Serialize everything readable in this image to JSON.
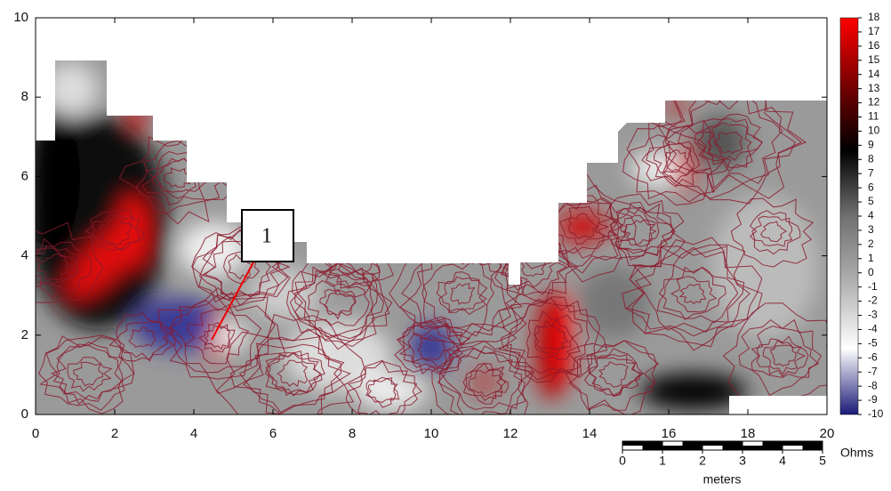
{
  "chart_data": {
    "type": "contour",
    "xlim": [
      0,
      20
    ],
    "ylim": [
      0,
      10
    ],
    "xticks": [
      0,
      2,
      4,
      6,
      8,
      10,
      12,
      14,
      16,
      18,
      20
    ],
    "yticks": [
      0,
      2,
      4,
      6,
      8,
      10
    ],
    "annotation": "1",
    "contour_color": "#8b1a2b",
    "colorbar": {
      "label": "Ohms",
      "range": [
        -10,
        18
      ],
      "ticks": [
        -10,
        -9,
        -8,
        -7,
        -6,
        -5,
        -4,
        -3,
        -2,
        -1,
        0,
        1,
        2,
        3,
        4,
        5,
        6,
        7,
        8,
        9,
        10,
        11,
        12,
        13,
        14,
        15,
        16,
        17,
        18
      ],
      "colors": [
        "#1a1a78",
        "#ffffff",
        "#b0b0b0",
        "#707070",
        "#000000",
        "#7a0000",
        "#ff0000"
      ]
    },
    "scale_bar": {
      "label": "meters",
      "range": [
        0,
        5
      ],
      "ticks": [
        0,
        1,
        2,
        3,
        4,
        5
      ]
    }
  }
}
